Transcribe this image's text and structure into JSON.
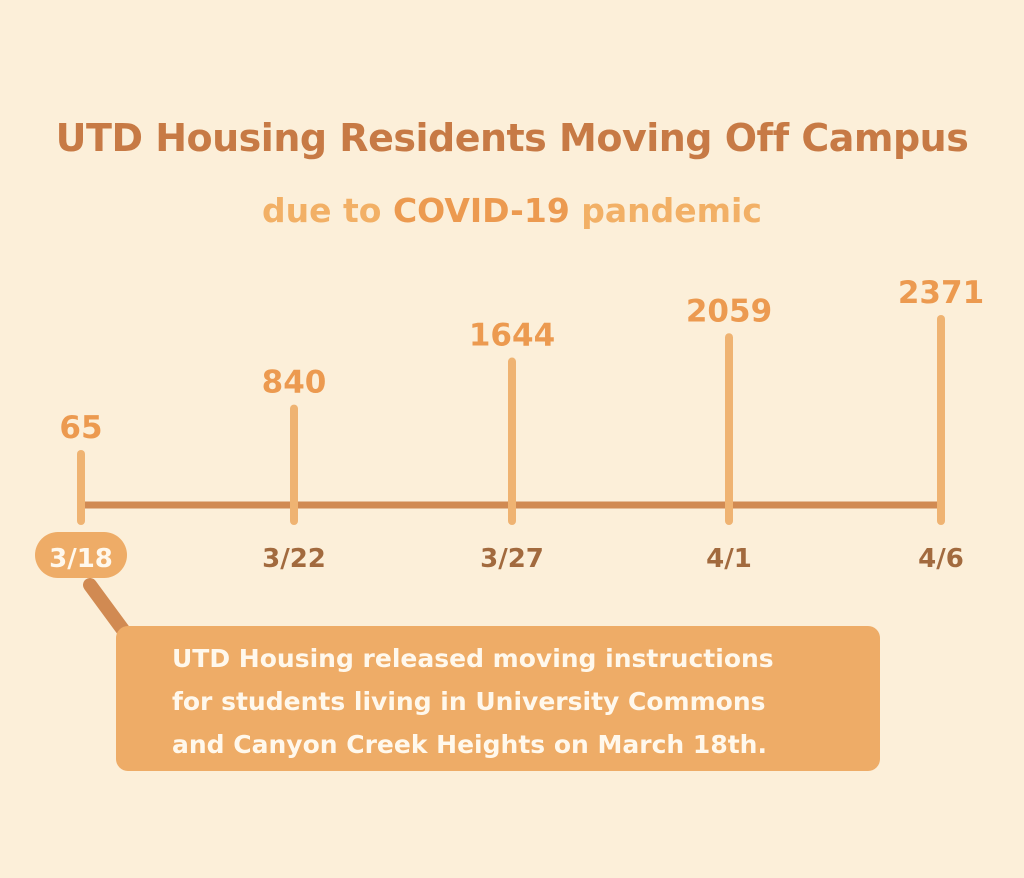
{
  "title": "UTD Housing Residents Moving Off Campus",
  "subtitle": {
    "part1": "due to ",
    "highlight": "COVID-19",
    "part2": " pandemic"
  },
  "colors": {
    "background": "#fcefd9",
    "title": "#c77a45",
    "subtitle": "#f2b066",
    "axis": "#d18a52",
    "stem": "#efb372",
    "value_label": "#ec9a50",
    "date_label": "#a26a3e",
    "callout": "#eeac67"
  },
  "chart_data": {
    "type": "timeline",
    "dates": [
      "3/18",
      "3/22",
      "3/27",
      "4/1",
      "4/6"
    ],
    "values": [
      65,
      840,
      1644,
      2059,
      2371
    ],
    "highlighted_date": "3/18"
  },
  "callout": {
    "lines": [
      "UTD Housing released moving instructions",
      "for students living in University Commons",
      "and Canyon Creek Heights on March 18th."
    ]
  }
}
